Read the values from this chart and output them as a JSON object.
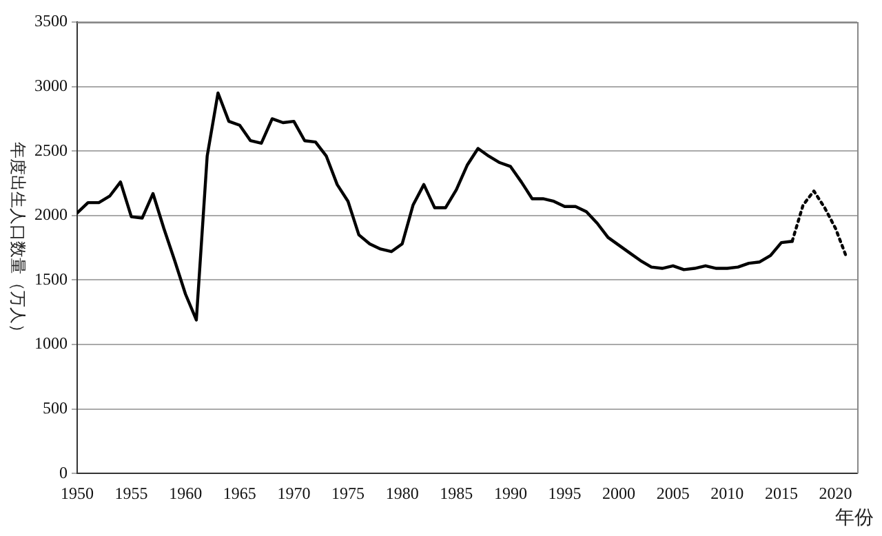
{
  "chart_data": {
    "type": "line",
    "ylabel": "年度出生人口数量（万人）",
    "xlabel": "年份",
    "xlim": [
      1950,
      2022
    ],
    "xticks": [
      1950,
      1955,
      1960,
      1965,
      1970,
      1975,
      1980,
      1985,
      1990,
      1995,
      2000,
      2005,
      2010,
      2015,
      2020
    ],
    "ylim": [
      0,
      3500
    ],
    "yticks": [
      0,
      500,
      1000,
      1500,
      2000,
      2500,
      3000,
      3500
    ],
    "grid": "y",
    "legend": false,
    "marker": "none",
    "series": [
      {
        "color": "#000000",
        "line_style": "solid",
        "x": [
          1950,
          1951,
          1952,
          1953,
          1954,
          1955,
          1956,
          1957,
          1958,
          1959,
          1960,
          1961,
          1962,
          1963,
          1964,
          1965,
          1966,
          1967,
          1968,
          1969,
          1970,
          1971,
          1972,
          1973,
          1974,
          1975,
          1976,
          1977,
          1978,
          1979,
          1980,
          1981,
          1982,
          1983,
          1984,
          1985,
          1986,
          1987,
          1988,
          1989,
          1990,
          1991,
          1992,
          1993,
          1994,
          1995,
          1996,
          1997,
          1998,
          1999,
          2000,
          2001,
          2002,
          2003,
          2004,
          2005,
          2006,
          2007,
          2008,
          2009,
          2010,
          2011,
          2012,
          2013,
          2014,
          2015,
          2016
        ],
        "values": [
          2020,
          2100,
          2100,
          2150,
          2260,
          1990,
          1980,
          2170,
          1900,
          1650,
          1390,
          1190,
          2460,
          2950,
          2730,
          2700,
          2580,
          2560,
          2750,
          2720,
          2730,
          2580,
          2570,
          2460,
          2240,
          2110,
          1850,
          1780,
          1740,
          1720,
          1780,
          2080,
          2240,
          2060,
          2060,
          2200,
          2390,
          2520,
          2460,
          2410,
          2380,
          2260,
          2130,
          2130,
          2110,
          2070,
          2070,
          2030,
          1940,
          1830,
          1770,
          1710,
          1650,
          1600,
          1590,
          1610,
          1580,
          1590,
          1610,
          1590,
          1590,
          1600,
          1630,
          1640,
          1690,
          1790,
          1800
        ]
      },
      {
        "color": "#000000",
        "line_style": "dotted",
        "x": [
          2016,
          2017,
          2018,
          2019,
          2020,
          2021
        ],
        "values": [
          1800,
          2080,
          2190,
          2060,
          1900,
          1680
        ]
      }
    ]
  }
}
